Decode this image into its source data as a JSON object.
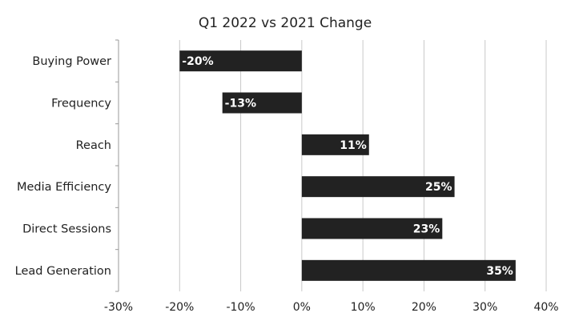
{
  "chart_data": {
    "type": "bar",
    "orientation": "horizontal",
    "title": "Q1 2022 vs 2021 Change",
    "categories": [
      "Buying Power",
      "Frequency",
      "Reach",
      "Media Efficiency",
      "Direct Sessions",
      "Lead Generation"
    ],
    "values": [
      -20,
      -13,
      11,
      25,
      23,
      35
    ],
    "value_labels": [
      "-20%",
      "-13%",
      "11%",
      "25%",
      "23%",
      "35%"
    ],
    "xlim": [
      -30,
      40
    ],
    "x_ticks": [
      -30,
      -20,
      -10,
      0,
      10,
      20,
      30,
      40
    ],
    "x_tick_labels": [
      "-30%",
      "-20%",
      "-10%",
      "0%",
      "10%",
      "20%",
      "30%",
      "40%"
    ],
    "xlabel": "",
    "ylabel": "",
    "grid": "vertical",
    "legend": "none",
    "colors": {
      "bar": "#222222",
      "grid": "#c8c8c8",
      "axis": "#999999",
      "text": "#222222",
      "data_label": "#ffffff"
    }
  }
}
